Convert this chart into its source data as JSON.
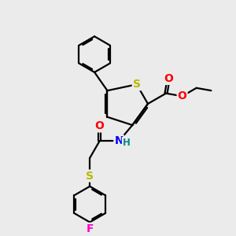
{
  "bg_color": "#ebebeb",
  "bond_color": "#000000",
  "bond_width": 1.6,
  "atom_colors": {
    "S": "#b8b800",
    "N": "#0000ff",
    "O": "#ff0000",
    "F": "#ff00cc",
    "H": "#008888",
    "C": "#000000"
  },
  "font_size_atom": 9.5
}
